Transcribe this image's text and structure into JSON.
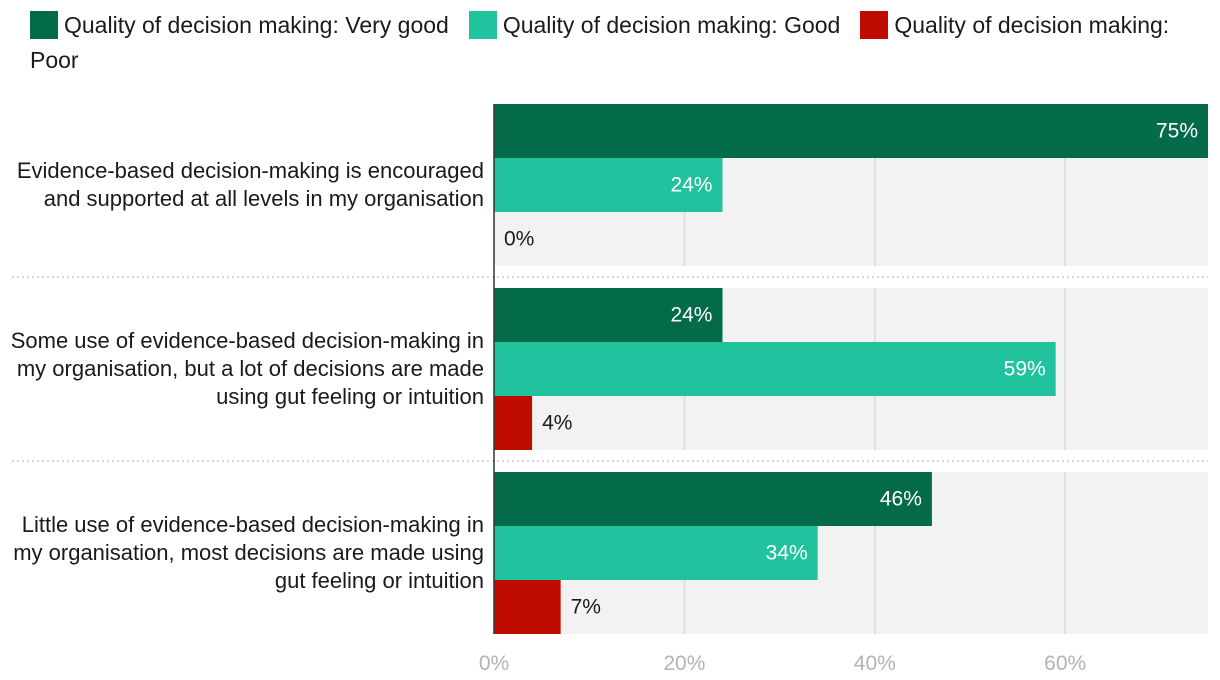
{
  "chart_data": {
    "type": "bar",
    "orientation": "horizontal",
    "categories": [
      "Evidence-based decision-making is encouraged and supported at all levels in my organisation",
      "Some use of evidence-based decision-making in my organisation, but a lot of decisions are made using gut feeling or intuition",
      "Little use of evidence-based decision-making in my organisation, most decisions are made using gut feeling or intuition"
    ],
    "series": [
      {
        "name": "Quality of decision making: Very good",
        "color": "#036b49",
        "values": [
          75,
          24,
          46
        ],
        "labels": [
          "75%",
          "24%",
          "46%"
        ]
      },
      {
        "name": "Quality of decision making: Good",
        "color": "#20c39e",
        "values": [
          24,
          59,
          34
        ],
        "labels": [
          "24%",
          "59%",
          "34%"
        ]
      },
      {
        "name": "Quality of decision making: Poor",
        "color": "#c00c00",
        "values": [
          0,
          4,
          7
        ],
        "labels": [
          "0%",
          "4%",
          "7%"
        ]
      }
    ],
    "xlim": [
      0,
      75
    ],
    "xticks": [
      0,
      20,
      40,
      60
    ],
    "xtick_labels": [
      "0%",
      "20%",
      "40%",
      "60%"
    ],
    "grid": true,
    "legend": "top",
    "title": "",
    "xlabel": "",
    "ylabel": ""
  }
}
